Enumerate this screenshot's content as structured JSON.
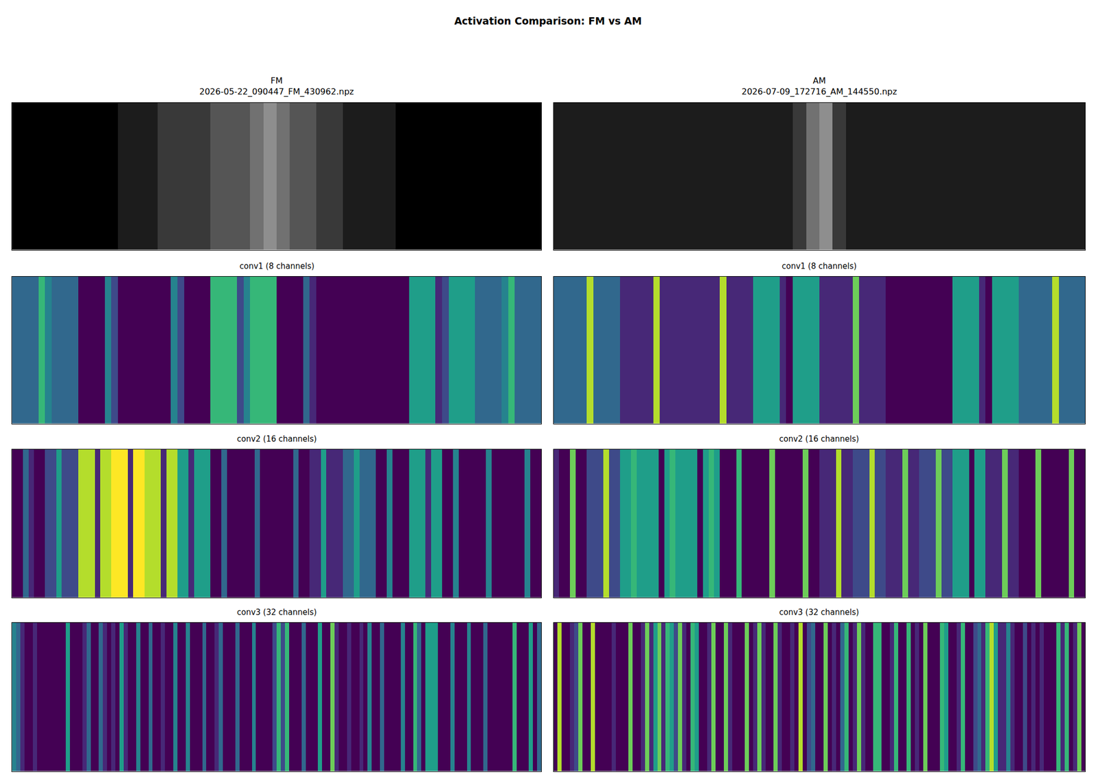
{
  "chart_data": {
    "type": "heatmap_grid",
    "title": "Activation Comparison: FM vs AM",
    "tick_labels": false,
    "panels": [
      {
        "type": "heatmap",
        "title": "FM",
        "subtitle": "2026-05-22_090447_FM_430962.npz",
        "color": "gray",
        "zlim": [
          0,
          9
        ],
        "z": [
          [
            0,
            0,
            0,
            0,
            0,
            0,
            0,
            0,
            1,
            1,
            1,
            2,
            2,
            2,
            2,
            3,
            3,
            3,
            4,
            5,
            4,
            3,
            3,
            2,
            2,
            1,
            1,
            1,
            1,
            0,
            0,
            0,
            0,
            0,
            0,
            0,
            0,
            0,
            0,
            0
          ]
        ]
      },
      {
        "type": "heatmap",
        "title": "AM",
        "subtitle": "2026-07-09_172716_AM_144550.npz",
        "color": "gray",
        "zlim": [
          0,
          9
        ],
        "z": [
          [
            1,
            1,
            1,
            1,
            1,
            1,
            1,
            1,
            1,
            1,
            1,
            1,
            1,
            1,
            1,
            1,
            1,
            1,
            2,
            4,
            5,
            2,
            1,
            1,
            1,
            1,
            1,
            1,
            1,
            1,
            1,
            1,
            1,
            1,
            1,
            1,
            1,
            1,
            1,
            1
          ]
        ]
      },
      {
        "type": "heatmap",
        "title": "conv1 (8 channels)",
        "color": "viridis",
        "zlim": [
          0,
          9
        ],
        "z": [
          [
            3,
            3,
            3,
            3,
            6,
            4,
            3,
            3,
            3,
            3,
            0,
            0,
            0,
            0,
            4,
            2,
            0,
            0,
            0,
            0,
            0,
            0,
            0,
            0,
            4,
            2,
            0,
            0,
            0,
            0,
            6,
            6,
            6,
            6,
            2,
            4,
            6,
            6,
            6,
            6,
            0,
            0,
            0,
            0,
            3,
            1,
            0,
            0,
            0,
            0,
            0,
            0,
            0,
            0,
            0,
            0,
            0,
            0,
            0,
            0,
            5,
            5,
            5,
            5,
            1,
            2,
            5,
            5,
            5,
            5,
            3,
            3,
            3,
            3,
            4,
            6,
            3,
            3,
            3,
            3
          ]
        ]
      },
      {
        "type": "heatmap",
        "title": "conv1 (8 channels)",
        "color": "viridis",
        "zlim": [
          0,
          9
        ],
        "z": [
          [
            3,
            3,
            3,
            3,
            3,
            8,
            3,
            3,
            3,
            3,
            1,
            1,
            1,
            1,
            1,
            8,
            1,
            1,
            1,
            1,
            1,
            1,
            1,
            1,
            1,
            8,
            1,
            1,
            1,
            1,
            5,
            5,
            5,
            5,
            1,
            0,
            5,
            5,
            5,
            5,
            1,
            1,
            1,
            1,
            1,
            7,
            1,
            1,
            1,
            1,
            0,
            0,
            0,
            0,
            0,
            0,
            0,
            0,
            0,
            0,
            5,
            5,
            5,
            5,
            1,
            0,
            5,
            5,
            5,
            5,
            3,
            3,
            3,
            3,
            3,
            8,
            3,
            3,
            3,
            3
          ]
        ]
      },
      {
        "type": "heatmap",
        "title": "conv2 (16 channels)",
        "color": "viridis",
        "zlim": [
          0,
          9
        ],
        "z": [
          [
            0,
            0,
            3,
            1,
            0,
            0,
            2,
            2,
            5,
            2,
            2,
            2,
            8,
            8,
            8,
            1,
            8,
            8,
            9,
            9,
            9,
            1,
            9,
            9,
            8,
            8,
            8,
            1,
            8,
            8,
            5,
            5,
            1,
            5,
            5,
            5,
            0,
            0,
            3,
            0,
            0,
            0,
            0,
            0,
            3,
            0,
            0,
            0,
            0,
            0,
            0,
            3,
            0,
            0,
            1,
            1,
            5,
            1,
            1,
            1,
            3,
            3,
            5,
            3,
            3,
            3,
            0,
            0,
            4,
            0,
            0,
            0,
            5,
            5,
            5,
            1,
            5,
            5,
            0,
            0,
            4,
            0,
            0,
            0,
            0,
            0,
            4,
            0,
            0,
            0,
            0,
            0,
            0,
            4,
            0,
            0
          ]
        ]
      },
      {
        "type": "heatmap",
        "title": "conv2 (16 channels)",
        "color": "viridis",
        "zlim": [
          0,
          9
        ],
        "z": [
          [
            1,
            0,
            0,
            7,
            0,
            0,
            2,
            2,
            2,
            8,
            2,
            2,
            5,
            5,
            6,
            5,
            5,
            5,
            5,
            0,
            5,
            6,
            5,
            5,
            5,
            5,
            0,
            5,
            6,
            5,
            0,
            0,
            0,
            6,
            0,
            0,
            0,
            0,
            0,
            7,
            0,
            0,
            0,
            0,
            0,
            7,
            0,
            0,
            1,
            1,
            1,
            8,
            1,
            1,
            2,
            2,
            2,
            8,
            2,
            2,
            1,
            1,
            1,
            7,
            1,
            1,
            2,
            2,
            2,
            7,
            2,
            2,
            5,
            5,
            5,
            0,
            5,
            5,
            1,
            1,
            1,
            7,
            1,
            1,
            0,
            0,
            0,
            7,
            0,
            0,
            0,
            0,
            0,
            7,
            0,
            0
          ]
        ]
      },
      {
        "type": "heatmap",
        "title": "conv3 (32 channels)",
        "color": "viridis",
        "zlim": [
          0,
          9
        ],
        "z": [
          [
            4,
            3,
            1,
            0,
            0,
            1,
            0,
            0,
            0,
            0,
            0,
            0,
            0,
            5,
            0,
            0,
            0,
            1,
            3,
            0,
            0,
            3,
            1,
            0,
            1,
            0,
            5,
            1,
            0,
            0,
            4,
            0,
            0,
            3,
            0,
            0,
            1,
            0,
            0,
            4,
            0,
            0,
            4,
            0,
            0,
            0,
            3,
            0,
            0,
            1,
            3,
            0,
            0,
            0,
            3,
            0,
            0,
            0,
            4,
            0,
            0,
            0,
            0,
            2,
            6,
            2,
            6,
            0,
            0,
            0,
            3,
            0,
            0,
            0,
            5,
            0,
            0,
            7,
            1,
            0,
            0,
            1,
            0,
            0,
            1,
            0,
            4,
            0,
            0,
            3,
            0,
            0,
            0,
            0,
            4,
            0,
            0,
            6,
            3,
            0,
            5,
            5,
            5,
            0,
            0,
            0,
            4,
            0,
            0,
            0,
            4,
            0,
            0,
            0,
            3,
            0,
            0,
            0,
            0,
            0,
            0,
            6,
            0,
            0,
            0,
            5,
            0,
            3
          ]
        ]
      },
      {
        "type": "heatmap",
        "title": "conv3 (32 channels)",
        "color": "viridis",
        "zlim": [
          0,
          9
        ],
        "z": [
          [
            0,
            8,
            0,
            0,
            1,
            2,
            7,
            0,
            0,
            8,
            0,
            0,
            0,
            0,
            1,
            0,
            0,
            0,
            7,
            0,
            0,
            1,
            7,
            1,
            5,
            7,
            1,
            6,
            5,
            2,
            7,
            1,
            0,
            6,
            5,
            0,
            0,
            1,
            7,
            0,
            0,
            7,
            1,
            0,
            0,
            0,
            7,
            0,
            1,
            7,
            1,
            0,
            0,
            7,
            1,
            0,
            0,
            1,
            0,
            8,
            0,
            2,
            3,
            0,
            0,
            7,
            0,
            1,
            0,
            3,
            6,
            0,
            1,
            7,
            1,
            0,
            0,
            6,
            6,
            0,
            0,
            1,
            6,
            0,
            0,
            6,
            0,
            1,
            0,
            7,
            0,
            0,
            0,
            6,
            5,
            0,
            0,
            1,
            6,
            0,
            0,
            2,
            3,
            1,
            6,
            8,
            5,
            1,
            1,
            4,
            1,
            0,
            0,
            2,
            0,
            1,
            0,
            1,
            0,
            0,
            0,
            6,
            1,
            6,
            0,
            1,
            7,
            0
          ]
        ]
      }
    ]
  }
}
